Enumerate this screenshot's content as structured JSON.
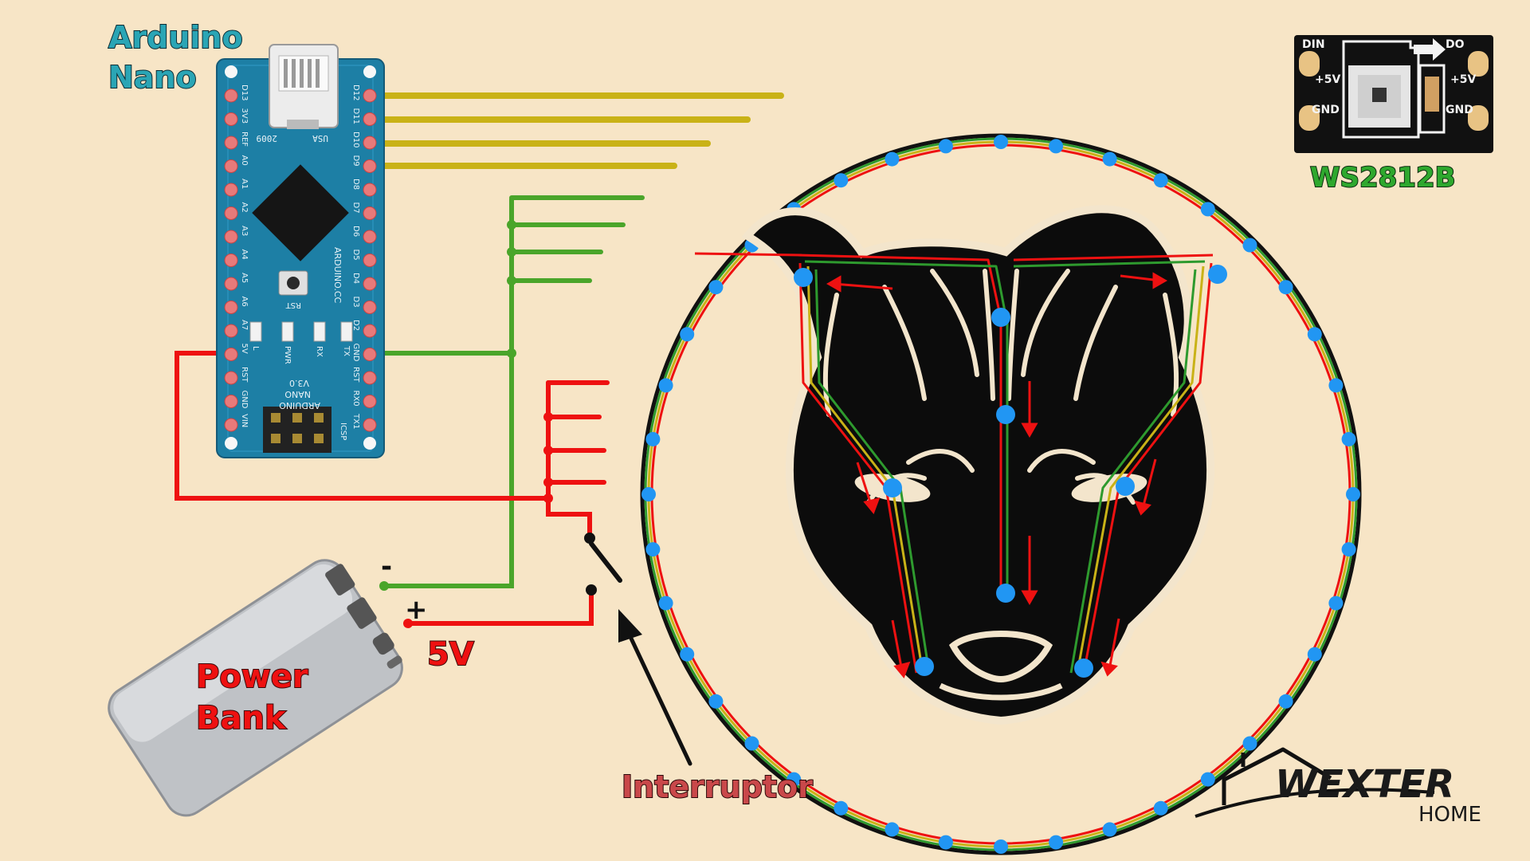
{
  "labels": {
    "arduino_line1": "Arduino",
    "arduino_line2": "Nano",
    "ws2812b": "WS2812B",
    "power_line1": "Power",
    "power_line2": "Bank",
    "voltage": "5V",
    "switch": "Interruptor",
    "minus": "-",
    "plus": "+"
  },
  "arduino": {
    "usa": "USA",
    "year": "2009",
    "rst": "RST",
    "brand": "ARDUINO.CC",
    "model_line1": "ARDUINO",
    "model_line2": "NANO",
    "model_line3": "V3.0",
    "icsp": "ICSP",
    "left_pins": [
      "D13",
      "3V3",
      "REF",
      "A0",
      "A1",
      "A2",
      "A3",
      "A4",
      "A5",
      "A6",
      "A7",
      "5V",
      "RST",
      "GND",
      "VIN"
    ],
    "right_pins": [
      "D12",
      "D11",
      "D10",
      "D9",
      "D8",
      "D7",
      "D6",
      "D5",
      "D4",
      "D3",
      "D2",
      "GND",
      "RST",
      "RX0",
      "TX1"
    ],
    "leds": [
      "L",
      "PWR",
      "RX",
      "TX"
    ]
  },
  "ws_chip": {
    "din": "DIN",
    "do": "DO",
    "v5_left": "+5V",
    "v5_right": "+5V",
    "gnd_left": "GND",
    "gnd_right": "GND"
  },
  "logo": {
    "word": "WEXTER",
    "sub": "HOME"
  },
  "colors": {
    "background": "#f7e5c6",
    "data_wire": "#c9b217",
    "gnd_wire": "#4aa52a",
    "vcc_wire": "#ee1111",
    "led": "#2196f3",
    "board": "#1d7fa5",
    "arduino_label": "#2aa5b5",
    "ws_label": "#2ea82e",
    "power_label": "#ee1111"
  }
}
